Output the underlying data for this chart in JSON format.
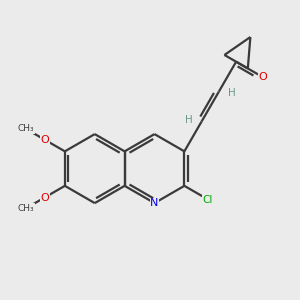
{
  "bg_color": "#ebebeb",
  "atom_colors": {
    "C": "#3a3a3a",
    "N": "#0000ee",
    "O": "#dd0000",
    "Cl": "#00aa00",
    "H": "#6a9a8a"
  },
  "bond_color": "#3a3a3a",
  "line_width": 1.6,
  "figsize": [
    3.0,
    3.0
  ],
  "dpi": 100
}
